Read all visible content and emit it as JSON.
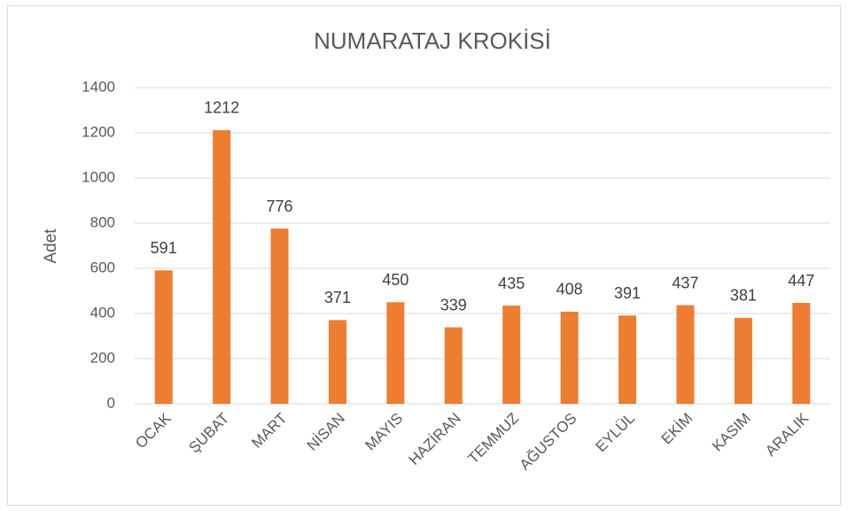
{
  "chart_data": {
    "type": "bar",
    "title": "NUMARATAJ KROKİSİ",
    "ylabel": "Adet",
    "categories": [
      "OCAK",
      "ŞUBAT",
      "MART",
      "NİSAN",
      "MAYIS",
      "HAZİRAN",
      "TEMMUZ",
      "AĞUSTOS",
      "EYLÜL",
      "EKİM",
      "KASIM",
      "ARALIK"
    ],
    "values": [
      591,
      1212,
      776,
      371,
      450,
      339,
      435,
      408,
      391,
      437,
      381,
      447
    ],
    "color": "#ed7d31",
    "ylim": [
      0,
      1400
    ],
    "yticks": [
      0,
      200,
      400,
      600,
      800,
      1000,
      1200,
      1400
    ],
    "grid": true
  }
}
